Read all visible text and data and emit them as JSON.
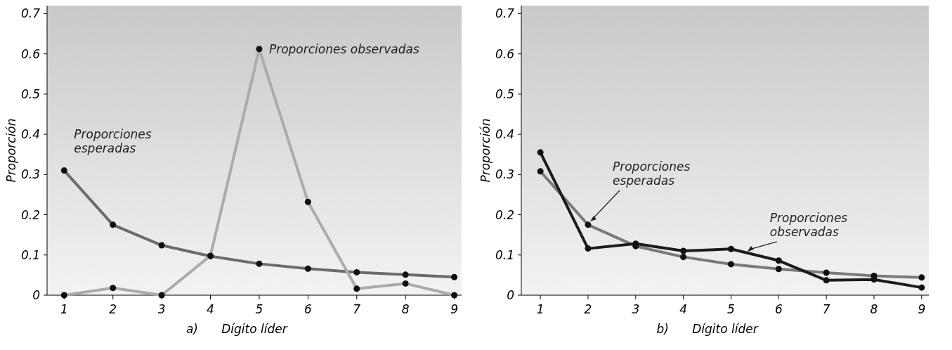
{
  "chart_data": [
    {
      "type": "line",
      "xlabel": "Dígito líder",
      "ylabel": "Proporción",
      "x": [
        1,
        2,
        3,
        4,
        5,
        6,
        7,
        8,
        9
      ],
      "xlim": [
        0.65,
        9.15
      ],
      "xticks": [
        1,
        2,
        3,
        4,
        5,
        6,
        7,
        8,
        9
      ],
      "ylim": [
        0,
        0.72
      ],
      "yticks": [
        0,
        0.1,
        0.2,
        0.3,
        0.4,
        0.5,
        0.6,
        0.7
      ],
      "marker": "circle",
      "grid": false,
      "series": [
        {
          "color": "#6b6b6b",
          "values": [
            0.31,
            0.175,
            0.124,
            0.097,
            0.078,
            0.066,
            0.057,
            0.051,
            0.045
          ]
        },
        {
          "color": "#ababab",
          "values": [
            0,
            0.018,
            0,
            0.098,
            0.612,
            0.232,
            0.016,
            0.029,
            0
          ]
        }
      ],
      "annotations": [
        "a)",
        {
          "text": "Proporciones\nesperadas",
          "x": 1,
          "y": 0.31
        },
        {
          "text": "Proporciones observadas",
          "x": 5,
          "y": 0.612
        }
      ]
    },
    {
      "type": "line",
      "xlabel": "Dígito líder",
      "ylabel": "Proporción",
      "x": [
        1,
        2,
        3,
        4,
        5,
        6,
        7,
        8,
        9
      ],
      "xlim": [
        0.6,
        9.15
      ],
      "xticks": [
        1,
        2,
        3,
        4,
        5,
        6,
        7,
        8,
        9
      ],
      "ylim": [
        0,
        0.72
      ],
      "yticks": [
        0,
        0.1,
        0.2,
        0.3,
        0.4,
        0.5,
        0.6,
        0.7
      ],
      "marker": "circle",
      "grid": false,
      "series": [
        {
          "color": "#7a7a7a",
          "values": [
            0.308,
            0.175,
            0.122,
            0.095,
            0.077,
            0.065,
            0.056,
            0.048,
            0.044
          ]
        },
        {
          "color": "#1c1c1c",
          "values": [
            0.355,
            0.116,
            0.128,
            0.11,
            0.115,
            0.086,
            0.037,
            0.039,
            0.019
          ]
        }
      ],
      "annotations": [
        "b)",
        {
          "text": "Proporciones\nesperadas",
          "x": 2,
          "y": 0.18
        },
        {
          "text": "Proporciones\nobservadas",
          "x": 5.3,
          "y": 0.105
        }
      ]
    }
  ]
}
